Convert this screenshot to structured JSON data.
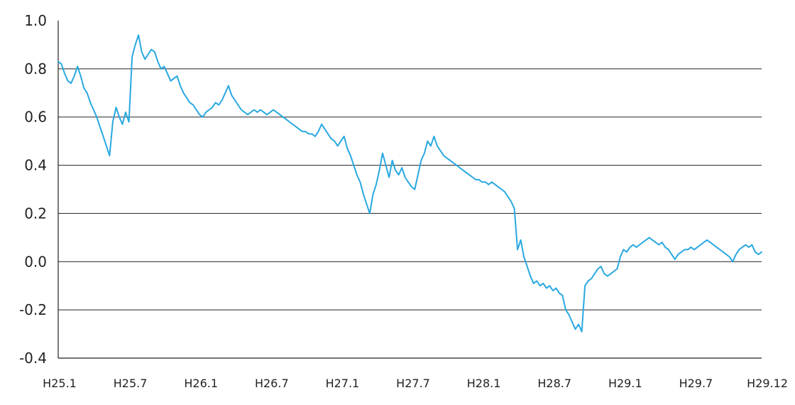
{
  "chart_data": {
    "type": "line",
    "title": "",
    "xlabel": "",
    "ylabel": "",
    "ylim": [
      -0.4,
      1.0
    ],
    "y_ticks": [
      "1.0",
      "0.8",
      "0.6",
      "0.4",
      "0.2",
      "0.0",
      "-0.2",
      "-0.4"
    ],
    "x_ticks": [
      "H25.1",
      "H25.7",
      "H26.1",
      "H26.7",
      "H27.1",
      "H27.7",
      "H28.1",
      "H28.7",
      "H29.1",
      "H29.7",
      "H29.12"
    ],
    "grid": "horizontal",
    "colors": {
      "series": "#29a8e0",
      "grid": "#222222"
    },
    "series": [
      {
        "values": [
          0.83,
          0.82,
          0.78,
          0.75,
          0.74,
          0.77,
          0.81,
          0.77,
          0.72,
          0.7,
          0.66,
          0.63,
          0.6,
          0.56,
          0.52,
          0.48,
          0.44,
          0.58,
          0.64,
          0.6,
          0.57,
          0.62,
          0.58,
          0.85,
          0.9,
          0.94,
          0.87,
          0.84,
          0.86,
          0.88,
          0.87,
          0.83,
          0.8,
          0.81,
          0.78,
          0.75,
          0.76,
          0.77,
          0.73,
          0.7,
          0.68,
          0.66,
          0.65,
          0.63,
          0.61,
          0.6,
          0.62,
          0.63,
          0.64,
          0.66,
          0.65,
          0.67,
          0.7,
          0.73,
          0.69,
          0.67,
          0.65,
          0.63,
          0.62,
          0.61,
          0.62,
          0.63,
          0.62,
          0.63,
          0.62,
          0.61,
          0.62,
          0.63,
          0.62,
          0.61,
          0.6,
          0.59,
          0.58,
          0.57,
          0.56,
          0.55,
          0.54,
          0.54,
          0.53,
          0.53,
          0.52,
          0.54,
          0.57,
          0.55,
          0.53,
          0.51,
          0.5,
          0.48,
          0.5,
          0.52,
          0.47,
          0.44,
          0.4,
          0.36,
          0.33,
          0.28,
          0.24,
          0.2,
          0.28,
          0.32,
          0.38,
          0.45,
          0.4,
          0.35,
          0.42,
          0.38,
          0.36,
          0.39,
          0.35,
          0.33,
          0.31,
          0.3,
          0.36,
          0.42,
          0.45,
          0.5,
          0.48,
          0.52,
          0.48,
          0.46,
          0.44,
          0.43,
          0.42,
          0.41,
          0.4,
          0.39,
          0.38,
          0.37,
          0.36,
          0.35,
          0.34,
          0.34,
          0.33,
          0.33,
          0.32,
          0.33,
          0.32,
          0.31,
          0.3,
          0.29,
          0.27,
          0.25,
          0.22,
          0.05,
          0.09,
          0.02,
          -0.02,
          -0.06,
          -0.09,
          -0.08,
          -0.1,
          -0.09,
          -0.11,
          -0.1,
          -0.12,
          -0.11,
          -0.13,
          -0.14,
          -0.2,
          -0.22,
          -0.25,
          -0.28,
          -0.26,
          -0.29,
          -0.1,
          -0.08,
          -0.07,
          -0.05,
          -0.03,
          -0.02,
          -0.05,
          -0.06,
          -0.05,
          -0.04,
          -0.03,
          0.02,
          0.05,
          0.04,
          0.06,
          0.07,
          0.06,
          0.07,
          0.08,
          0.09,
          0.1,
          0.09,
          0.08,
          0.07,
          0.08,
          0.06,
          0.05,
          0.03,
          0.01,
          0.03,
          0.04,
          0.05,
          0.05,
          0.06,
          0.05,
          0.06,
          0.07,
          0.08,
          0.09,
          0.08,
          0.07,
          0.06,
          0.05,
          0.04,
          0.03,
          0.02,
          0.0,
          0.03,
          0.05,
          0.06,
          0.07,
          0.06,
          0.07,
          0.04,
          0.03,
          0.04
        ]
      }
    ]
  }
}
